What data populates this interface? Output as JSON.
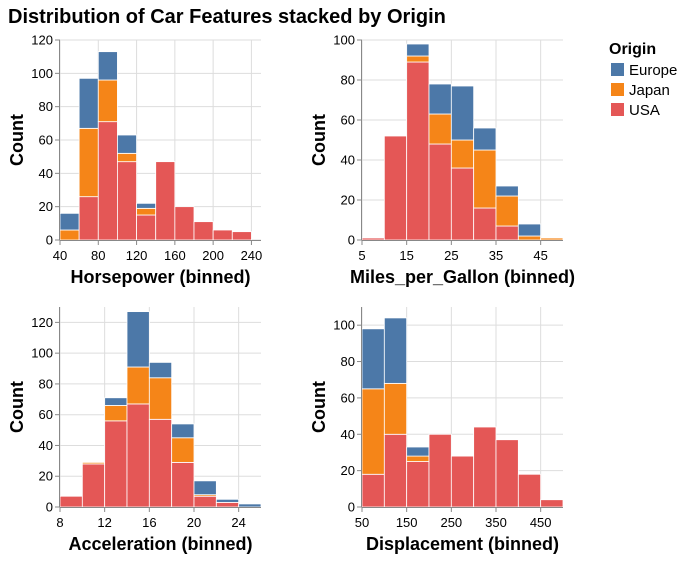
{
  "title": "Distribution of Car Features stacked by Origin",
  "legend": {
    "title": "Origin",
    "position": "top-right",
    "entries": [
      {
        "name": "Europe",
        "color": "#4c78a8"
      },
      {
        "name": "Japan",
        "color": "#f58518"
      },
      {
        "name": "USA",
        "color": "#e45756"
      }
    ]
  },
  "chart_data": [
    {
      "type": "bar",
      "stacked": true,
      "xlabel": "Horsepower (binned)",
      "ylabel": "Count",
      "xlim": [
        40,
        250
      ],
      "ylim": [
        0,
        120
      ],
      "xticks": [
        40,
        80,
        120,
        160,
        200,
        240
      ],
      "yticks": [
        0,
        20,
        40,
        60,
        80,
        100,
        120
      ],
      "grid": true,
      "bins": [
        [
          40,
          60
        ],
        [
          60,
          80
        ],
        [
          80,
          100
        ],
        [
          100,
          120
        ],
        [
          120,
          140
        ],
        [
          140,
          160
        ],
        [
          160,
          180
        ],
        [
          180,
          200
        ],
        [
          200,
          220
        ],
        [
          220,
          240
        ],
        [
          240,
          250
        ]
      ],
      "series": [
        {
          "name": "USA",
          "values": [
            0,
            26,
            71,
            47,
            15,
            47,
            20,
            11,
            6,
            5,
            0
          ]
        },
        {
          "name": "Japan",
          "values": [
            6,
            41,
            25,
            5,
            4,
            0,
            0,
            0,
            0,
            0,
            0
          ]
        },
        {
          "name": "Europe",
          "values": [
            10,
            30,
            17,
            11,
            3,
            0,
            0,
            0,
            0,
            0,
            0
          ]
        }
      ]
    },
    {
      "type": "bar",
      "stacked": true,
      "xlabel": "Miles_per_Gallon (binned)",
      "ylabel": "Count",
      "xlim": [
        5,
        50
      ],
      "ylim": [
        0,
        100
      ],
      "xticks": [
        5,
        15,
        25,
        35,
        45
      ],
      "yticks": [
        0,
        20,
        40,
        60,
        80,
        100
      ],
      "grid": true,
      "bins": [
        [
          5,
          10
        ],
        [
          10,
          15
        ],
        [
          15,
          20
        ],
        [
          20,
          25
        ],
        [
          25,
          30
        ],
        [
          30,
          35
        ],
        [
          35,
          40
        ],
        [
          40,
          45
        ],
        [
          45,
          50
        ]
      ],
      "series": [
        {
          "name": "USA",
          "values": [
            1,
            52,
            89,
            48,
            36,
            16,
            7,
            0,
            0
          ]
        },
        {
          "name": "Japan",
          "values": [
            0,
            0,
            3,
            15,
            14,
            29,
            15,
            2,
            1
          ]
        },
        {
          "name": "Europe",
          "values": [
            0,
            0,
            6,
            15,
            27,
            11,
            5,
            6,
            0
          ]
        }
      ]
    },
    {
      "type": "bar",
      "stacked": true,
      "xlabel": "Acceleration (binned)",
      "ylabel": "Count",
      "xlim": [
        8,
        26
      ],
      "ylim": [
        0,
        130
      ],
      "xticks": [
        8,
        12,
        16,
        20,
        24
      ],
      "yticks": [
        0,
        20,
        40,
        60,
        80,
        100,
        120
      ],
      "grid": true,
      "bins": [
        [
          8,
          10
        ],
        [
          10,
          12
        ],
        [
          12,
          14
        ],
        [
          14,
          16
        ],
        [
          16,
          18
        ],
        [
          18,
          20
        ],
        [
          20,
          22
        ],
        [
          22,
          24
        ],
        [
          24,
          26
        ]
      ],
      "series": [
        {
          "name": "USA",
          "values": [
            7,
            28,
            56,
            67,
            57,
            29,
            7,
            3,
            0
          ]
        },
        {
          "name": "Japan",
          "values": [
            0,
            1,
            10,
            24,
            27,
            16,
            1,
            0,
            0
          ]
        },
        {
          "name": "Europe",
          "values": [
            0,
            0,
            5,
            36,
            10,
            9,
            9,
            2,
            2
          ]
        }
      ]
    },
    {
      "type": "bar",
      "stacked": true,
      "xlabel": "Displacement (binned)",
      "ylabel": "Count",
      "xlim": [
        50,
        500
      ],
      "ylim": [
        0,
        110
      ],
      "xticks": [
        50,
        150,
        250,
        350,
        450
      ],
      "yticks": [
        0,
        20,
        40,
        60,
        80,
        100
      ],
      "grid": true,
      "bins": [
        [
          50,
          100
        ],
        [
          100,
          150
        ],
        [
          150,
          200
        ],
        [
          200,
          250
        ],
        [
          250,
          300
        ],
        [
          300,
          350
        ],
        [
          350,
          400
        ],
        [
          400,
          450
        ],
        [
          450,
          500
        ]
      ],
      "series": [
        {
          "name": "USA",
          "values": [
            18,
            40,
            25,
            40,
            28,
            44,
            37,
            18,
            4
          ]
        },
        {
          "name": "Japan",
          "values": [
            47,
            28,
            3,
            0,
            0,
            0,
            0,
            0,
            0
          ]
        },
        {
          "name": "Europe",
          "values": [
            33,
            36,
            5,
            0,
            0,
            0,
            0,
            0,
            0
          ]
        }
      ]
    }
  ]
}
